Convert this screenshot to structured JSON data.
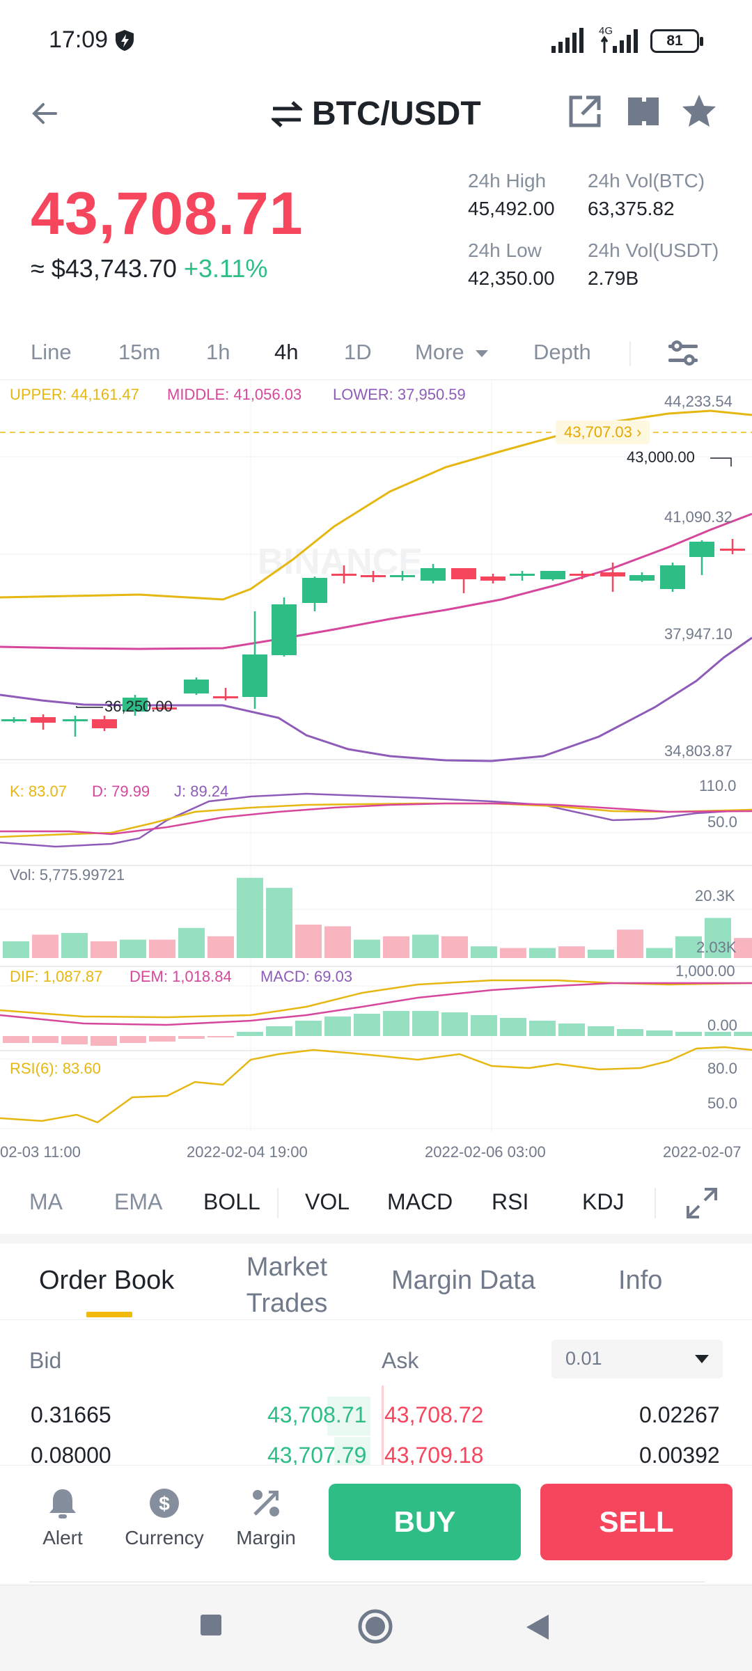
{
  "status_bar": {
    "time": "17:09",
    "network": "4G",
    "battery": "81"
  },
  "header": {
    "title": "BTC/USDT"
  },
  "price": {
    "last": "43,708.71",
    "usd_equiv": "≈ $43,743.70",
    "change": "+3.11%"
  },
  "stats": {
    "high_label": "24h High",
    "high_value": "45,492.00",
    "vol_btc_label": "24h Vol(BTC)",
    "vol_btc_value": "63,375.82",
    "low_label": "24h Low",
    "low_value": "42,350.00",
    "vol_usdt_label": "24h Vol(USDT)",
    "vol_usdt_value": "2.79B"
  },
  "timeframes": {
    "line": "Line",
    "m15": "15m",
    "h1": "1h",
    "h4": "4h",
    "d1": "1D",
    "more": "More",
    "depth": "Depth"
  },
  "colors": {
    "green": "#2ebd85",
    "red": "#f6465d",
    "yellow": "#f0b90b",
    "boll_upper": "#e6b710",
    "boll_middle": "#d6479c",
    "boll_lower": "#8e5cb8"
  },
  "chart": {
    "boll_upper": "UPPER: 44,161.47",
    "boll_middle": "MIDDLE: 41,056.03",
    "boll_lower": "LOWER: 37,950.59",
    "axis_1": "44,233.54",
    "axis_2": "41,090.32",
    "axis_3": "37,947.10",
    "axis_4": "34,803.87",
    "current_price_tag": "43,707.03",
    "high_marker": "43,000.00",
    "low_marker": "36,250.00",
    "watermark": "BINANCE",
    "kdj_k": "K: 83.07",
    "kdj_d": "D: 79.99",
    "kdj_j": "J: 89.24",
    "kdj_axis_1": "110.0",
    "kdj_axis_2": "50.0",
    "vol_label": "Vol: 5,775.99721",
    "vol_axis_1": "20.3K",
    "vol_axis_2": "2.03K",
    "macd_dif": "DIF: 1,087.87",
    "macd_dem": "DEM: 1,018.84",
    "macd_val": "MACD: 69.03",
    "macd_axis_1": "1,000.00",
    "macd_axis_2": "0.00",
    "rsi_label": "RSI(6): 83.60",
    "rsi_axis_1": "80.0",
    "rsi_axis_2": "50.0",
    "date_1": "02-03 11:00",
    "date_2": "2022-02-04 19:00",
    "date_3": "2022-02-06 03:00",
    "date_4": "2022-02-07"
  },
  "indicators": {
    "ma": "MA",
    "ema": "EMA",
    "boll": "BOLL",
    "vol": "VOL",
    "macd": "MACD",
    "rsi": "RSI",
    "kdj": "KDJ"
  },
  "order_book_tabs": {
    "order_book": "Order Book",
    "market_trades_1": "Market",
    "market_trades_2": "Trades",
    "margin_data": "Margin Data",
    "info": "Info"
  },
  "order_book": {
    "bid_label": "Bid",
    "ask_label": "Ask",
    "depth_value": "0.01",
    "rows": [
      {
        "bid_qty": "0.31665",
        "bid_price": "43,708.71",
        "ask_price": "43,708.72",
        "ask_qty": "0.02267"
      },
      {
        "bid_qty": "0.08000",
        "bid_price": "43,707.79",
        "ask_price": "43,709.18",
        "ask_qty": "0.00392"
      }
    ]
  },
  "actions": {
    "alert": "Alert",
    "currency": "Currency",
    "margin": "Margin",
    "buy": "BUY",
    "sell": "SELL"
  }
}
